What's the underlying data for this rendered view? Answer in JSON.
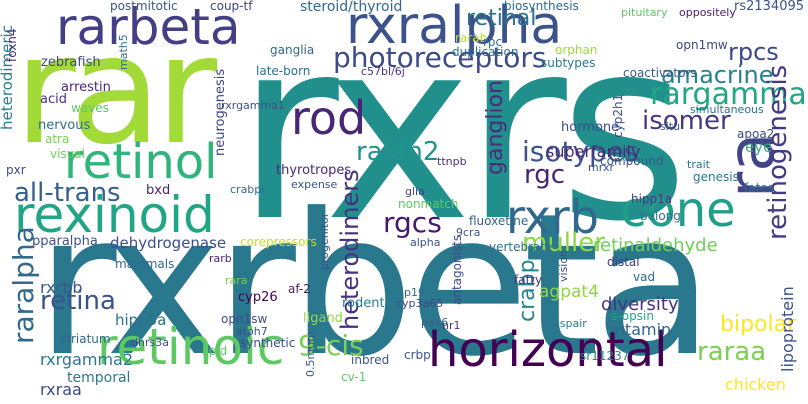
{
  "words": [
    {
      "text": "rxrs",
      "color": "#21908c"
    },
    {
      "text": "rxrbeta",
      "color": "#2a788e"
    },
    {
      "text": "rar",
      "color": "#a2da37"
    },
    {
      "text": "rarbeta",
      "color": "#433e85"
    },
    {
      "text": "rxralpha",
      "color": "#3b528b"
    },
    {
      "text": "rexinoid",
      "color": "#21a685"
    },
    {
      "text": "horizontal",
      "color": "#440154"
    },
    {
      "text": "retinoic",
      "color": "#5ec962"
    },
    {
      "text": "retinol",
      "color": "#2fb47c"
    },
    {
      "text": "rod",
      "color": "#482677"
    },
    {
      "text": "cone",
      "color": "#1f9e89"
    },
    {
      "text": "rxrb",
      "color": "#31688e"
    },
    {
      "text": "ra",
      "color": "#414487"
    },
    {
      "text": "photoreceptors",
      "color": "#3e4a89"
    },
    {
      "text": "isotypes",
      "color": "#3b528b"
    },
    {
      "text": "all-trans",
      "color": "#355f8d"
    },
    {
      "text": "heterodimers",
      "color": "#46327e"
    },
    {
      "text": "rargamma",
      "color": "#22a785"
    },
    {
      "text": "amacrine",
      "color": "#26828e"
    },
    {
      "text": "retinal",
      "color": "#2c728e"
    },
    {
      "text": "rpcs",
      "color": "#3e4989"
    },
    {
      "text": "retinogenesis",
      "color": "#443983"
    },
    {
      "text": "ganglion",
      "color": "#472d7b"
    },
    {
      "text": "raldh2",
      "color": "#20938c"
    },
    {
      "text": "rgcs",
      "color": "#48186a"
    },
    {
      "text": "rgc",
      "color": "#482475"
    },
    {
      "text": "muller",
      "color": "#8fd744"
    },
    {
      "text": "retina",
      "color": "#3a538b"
    },
    {
      "text": "raralpha",
      "color": "#31688e"
    },
    {
      "text": "9-cis",
      "color": "#7ad151"
    },
    {
      "text": "isomer",
      "color": "#453781"
    },
    {
      "text": "crabp",
      "color": "#25858e"
    },
    {
      "text": "retinaldehyde",
      "color": "#6ece58"
    },
    {
      "text": "raraa",
      "color": "#7ad151"
    },
    {
      "text": "bipolar",
      "color": "#fde725"
    },
    {
      "text": "dehydrogenase",
      "color": "#3d4e8a"
    },
    {
      "text": "superfamily",
      "color": "#482878"
    },
    {
      "text": "rxrbb",
      "color": "#38598c"
    },
    {
      "text": "rxrgamma2",
      "color": "#2a788e"
    },
    {
      "text": "diversity",
      "color": "#46337f"
    },
    {
      "text": "agpat4",
      "color": "#8fd744"
    },
    {
      "text": "vitamin",
      "color": "#32658e"
    },
    {
      "text": "hipp5a",
      "color": "#2d708e"
    },
    {
      "text": "cyp26",
      "color": "#440154"
    },
    {
      "text": "eye",
      "color": "#2fb47c"
    },
    {
      "text": "fates",
      "color": "#2e6e8e"
    },
    {
      "text": "lipoprotein",
      "color": "#3b528b"
    },
    {
      "text": "chicken",
      "color": "#fde725"
    },
    {
      "text": "rxraa",
      "color": "#3e4989"
    },
    {
      "text": "temporal",
      "color": "#2a788e"
    },
    {
      "text": "sr11237",
      "color": "#23888e"
    },
    {
      "text": "steroid/thyroid",
      "color": "#31688e"
    },
    {
      "text": "biosynthesis",
      "color": "#306a8e"
    },
    {
      "text": "postmitotic",
      "color": "#3a538b"
    },
    {
      "text": "coup-tf",
      "color": "#404387"
    },
    {
      "text": "rarab",
      "color": "#bddf26"
    },
    {
      "text": "rs2134095",
      "color": "#3b528b"
    },
    {
      "text": "pituitary",
      "color": "#5ec962"
    },
    {
      "text": "oppositely",
      "color": "#482071"
    },
    {
      "text": "heterodimeric",
      "color": "#277f8e"
    },
    {
      "text": "zebrafish",
      "color": "#3f4788"
    },
    {
      "text": "ganglia",
      "color": "#31688e"
    },
    {
      "text": "rpc",
      "color": "#2d708e"
    },
    {
      "text": "duplication",
      "color": "#2c728e"
    },
    {
      "text": "subtypes",
      "color": "#2a788e"
    },
    {
      "text": "opn1mw",
      "color": "#404688"
    },
    {
      "text": "late-born",
      "color": "#2c718e"
    },
    {
      "text": "c57bl/6j",
      "color": "#463480"
    },
    {
      "text": "coactivators",
      "color": "#38598c"
    },
    {
      "text": "orphan",
      "color": "#a0da39"
    },
    {
      "text": "arrestin",
      "color": "#482878"
    },
    {
      "text": "acid",
      "color": "#46327e"
    },
    {
      "text": "waves",
      "color": "#5cc863"
    },
    {
      "text": "nervous",
      "color": "#2d708e"
    },
    {
      "text": "atra",
      "color": "#7ad151"
    },
    {
      "text": "visual",
      "color": "#6ece58"
    },
    {
      "text": "neurogenesis",
      "color": "#404688"
    },
    {
      "text": "rxrgamma1",
      "color": "#3b528b"
    },
    {
      "text": "hormone",
      "color": "#3e4c8a"
    },
    {
      "text": "situ",
      "color": "#37598c"
    },
    {
      "text": "simultaneous",
      "color": "#2c728e"
    },
    {
      "text": "apoa2",
      "color": "#3e4989"
    },
    {
      "text": "trait",
      "color": "#2c728e"
    },
    {
      "text": "genesis",
      "color": "#29798e"
    },
    {
      "text": "compound",
      "color": "#38588c"
    },
    {
      "text": "cyp2h1",
      "color": "#3b528b"
    },
    {
      "text": "mrxr",
      "color": "#3a538b"
    },
    {
      "text": "pxr",
      "color": "#3e4989"
    },
    {
      "text": "bxd",
      "color": "#482374"
    },
    {
      "text": "crabpi",
      "color": "#2f6c8e"
    },
    {
      "text": "glia",
      "color": "#433e85"
    },
    {
      "text": "fluoxetine",
      "color": "#33628d"
    },
    {
      "text": "hipp1a",
      "color": "#453882"
    },
    {
      "text": "nonmatch",
      "color": "#5ec962"
    },
    {
      "text": "belong",
      "color": "#2e6f8e"
    },
    {
      "text": "thyrotropes",
      "color": "#482878"
    },
    {
      "text": "expense",
      "color": "#3b528b"
    },
    {
      "text": "ttnpb",
      "color": "#46337f"
    },
    {
      "text": "pparalpha",
      "color": "#3b528b"
    },
    {
      "text": "corepressors",
      "color": "#c2df23"
    },
    {
      "text": "progenitor",
      "color": "#3a548c"
    },
    {
      "text": "9cra",
      "color": "#3b528b"
    },
    {
      "text": "vertebrate",
      "color": "#2e6f8e"
    },
    {
      "text": "beta",
      "color": "#2c728e"
    },
    {
      "text": "alpha",
      "color": "#3b528b"
    },
    {
      "text": "distal",
      "color": "#453781"
    },
    {
      "text": "vad",
      "color": "#306a8e"
    },
    {
      "text": "fatty",
      "color": "#46337f"
    },
    {
      "text": "vision",
      "color": "#3d4e8a"
    },
    {
      "text": "antagonists",
      "color": "#3e4989"
    },
    {
      "text": "mammals",
      "color": "#31688e"
    },
    {
      "text": "rarb",
      "color": "#482475"
    },
    {
      "text": "rara",
      "color": "#6ece58"
    },
    {
      "text": "af-2",
      "color": "#48186a"
    },
    {
      "text": "rodent",
      "color": "#26818e"
    },
    {
      "text": "cyp3a65",
      "color": "#3f4788"
    },
    {
      "text": "p19",
      "color": "#31688e"
    },
    {
      "text": "ligand",
      "color": "#8fd744"
    },
    {
      "text": "atoh7",
      "color": "#3b528b"
    },
    {
      "text": "pax6",
      "color": "#33638d"
    },
    {
      "text": "s-opsin",
      "color": "#22a884"
    },
    {
      "text": "striatum",
      "color": "#31688e"
    },
    {
      "text": "dhrs3a",
      "color": "#3b528b"
    },
    {
      "text": "opn1sw",
      "color": "#3e4c8a"
    },
    {
      "text": "synthetic",
      "color": "#3e4989"
    },
    {
      "text": "lipid",
      "color": "#5ec962"
    },
    {
      "text": "inbred",
      "color": "#3a538b"
    },
    {
      "text": "crbp",
      "color": "#3b528b"
    },
    {
      "text": "despair",
      "color": "#29798e"
    },
    {
      "text": "cv-1",
      "color": "#5ec962"
    },
    {
      "text": "nr1",
      "color": "#46337f"
    },
    {
      "text": "0.5mum",
      "color": "#3b528b"
    },
    {
      "text": "foxn4",
      "color": "#46327e"
    },
    {
      "text": "math5",
      "color": "#2d708e"
    }
  ]
}
